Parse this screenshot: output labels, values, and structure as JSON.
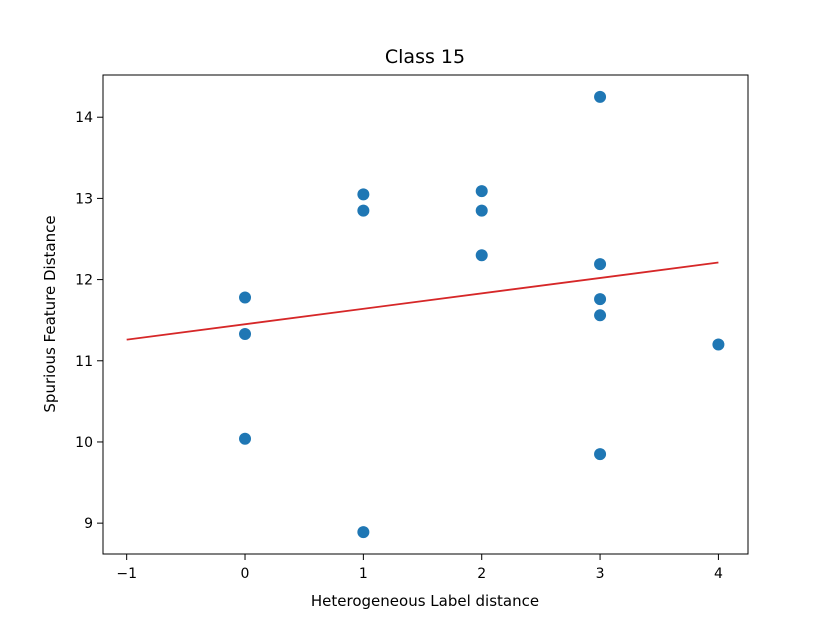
{
  "chart_data": {
    "type": "scatter",
    "title": "Class 15",
    "xlabel": "Heterogeneous Label distance",
    "ylabel": "Spurious Feature Distance",
    "xlim": [
      -1.2,
      4.25
    ],
    "ylim": [
      8.62,
      14.52
    ],
    "xticks": [
      -1,
      0,
      1,
      2,
      3,
      4
    ],
    "xtick_labels": [
      "−1",
      "0",
      "1",
      "2",
      "3",
      "4"
    ],
    "yticks": [
      9,
      10,
      11,
      12,
      13,
      14
    ],
    "ytick_labels": [
      "9",
      "10",
      "11",
      "12",
      "13",
      "14"
    ],
    "grid": false,
    "legend": null,
    "series": [
      {
        "kind": "scatter",
        "color": "#1f77b4",
        "x": [
          0,
          0,
          0,
          1,
          1,
          1,
          2,
          2,
          2,
          3,
          3,
          3,
          3,
          3,
          4
        ],
        "y": [
          11.78,
          11.33,
          10.04,
          13.05,
          12.85,
          8.89,
          13.09,
          12.85,
          12.3,
          14.25,
          12.19,
          11.76,
          11.56,
          9.85,
          11.2
        ]
      },
      {
        "kind": "line",
        "color": "#d62728",
        "x": [
          -1,
          4
        ],
        "y": [
          11.26,
          12.21
        ]
      }
    ]
  }
}
